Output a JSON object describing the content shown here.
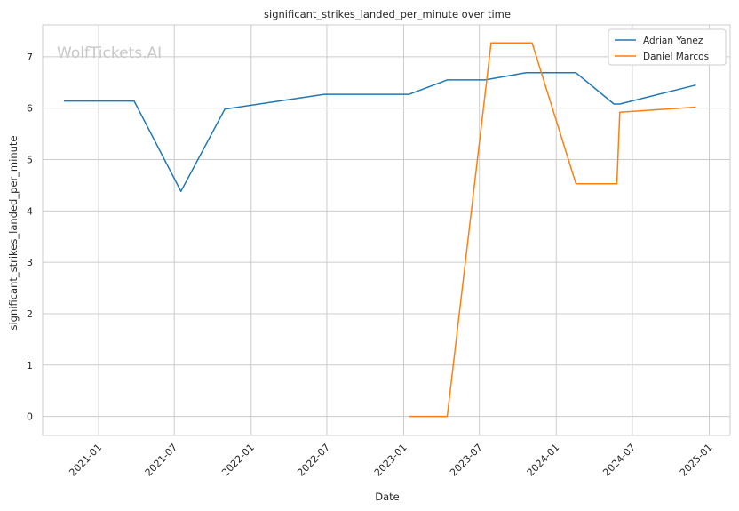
{
  "watermark": "WolfTickets.AI",
  "chart_data": {
    "type": "line",
    "title": "significant_strikes_landed_per_minute over time",
    "xlabel": "Date",
    "ylabel": "significant_strikes_landed_per_minute",
    "x_tick_labels": [
      "2021-01",
      "2021-07",
      "2022-01",
      "2022-07",
      "2023-01",
      "2023-07",
      "2024-01",
      "2024-07",
      "2025-01"
    ],
    "y_ticks": [
      0,
      1,
      2,
      3,
      4,
      5,
      6,
      7
    ],
    "xlim": [
      "2020-08-20",
      "2025-02-20"
    ],
    "ylim": [
      -0.37,
      7.62
    ],
    "grid": true,
    "legend_position": "top-right",
    "series": [
      {
        "name": "Adrian Yanez",
        "color": "#1f77b4",
        "points": [
          {
            "x": "2020-10-10",
            "y": 6.14
          },
          {
            "x": "2021-03-27",
            "y": 6.14
          },
          {
            "x": "2021-07-17",
            "y": 4.38
          },
          {
            "x": "2021-10-30",
            "y": 5.98
          },
          {
            "x": "2022-06-25",
            "y": 6.27
          },
          {
            "x": "2023-01-14",
            "y": 6.27
          },
          {
            "x": "2023-04-15",
            "y": 6.55
          },
          {
            "x": "2023-07-15",
            "y": 6.55
          },
          {
            "x": "2023-10-21",
            "y": 6.69
          },
          {
            "x": "2024-02-17",
            "y": 6.69
          },
          {
            "x": "2024-05-18",
            "y": 6.08
          },
          {
            "x": "2024-06-01",
            "y": 6.08
          },
          {
            "x": "2024-11-30",
            "y": 6.45
          }
        ]
      },
      {
        "name": "Daniel Marcos",
        "color": "#ff7f0e",
        "points": [
          {
            "x": "2023-01-14",
            "y": 0.0
          },
          {
            "x": "2023-04-15",
            "y": 0.0
          },
          {
            "x": "2023-07-29",
            "y": 7.27
          },
          {
            "x": "2023-11-04",
            "y": 7.27
          },
          {
            "x": "2024-02-17",
            "y": 4.53
          },
          {
            "x": "2024-05-25",
            "y": 4.53
          },
          {
            "x": "2024-06-01",
            "y": 5.92
          },
          {
            "x": "2024-11-30",
            "y": 6.02
          }
        ]
      }
    ]
  }
}
